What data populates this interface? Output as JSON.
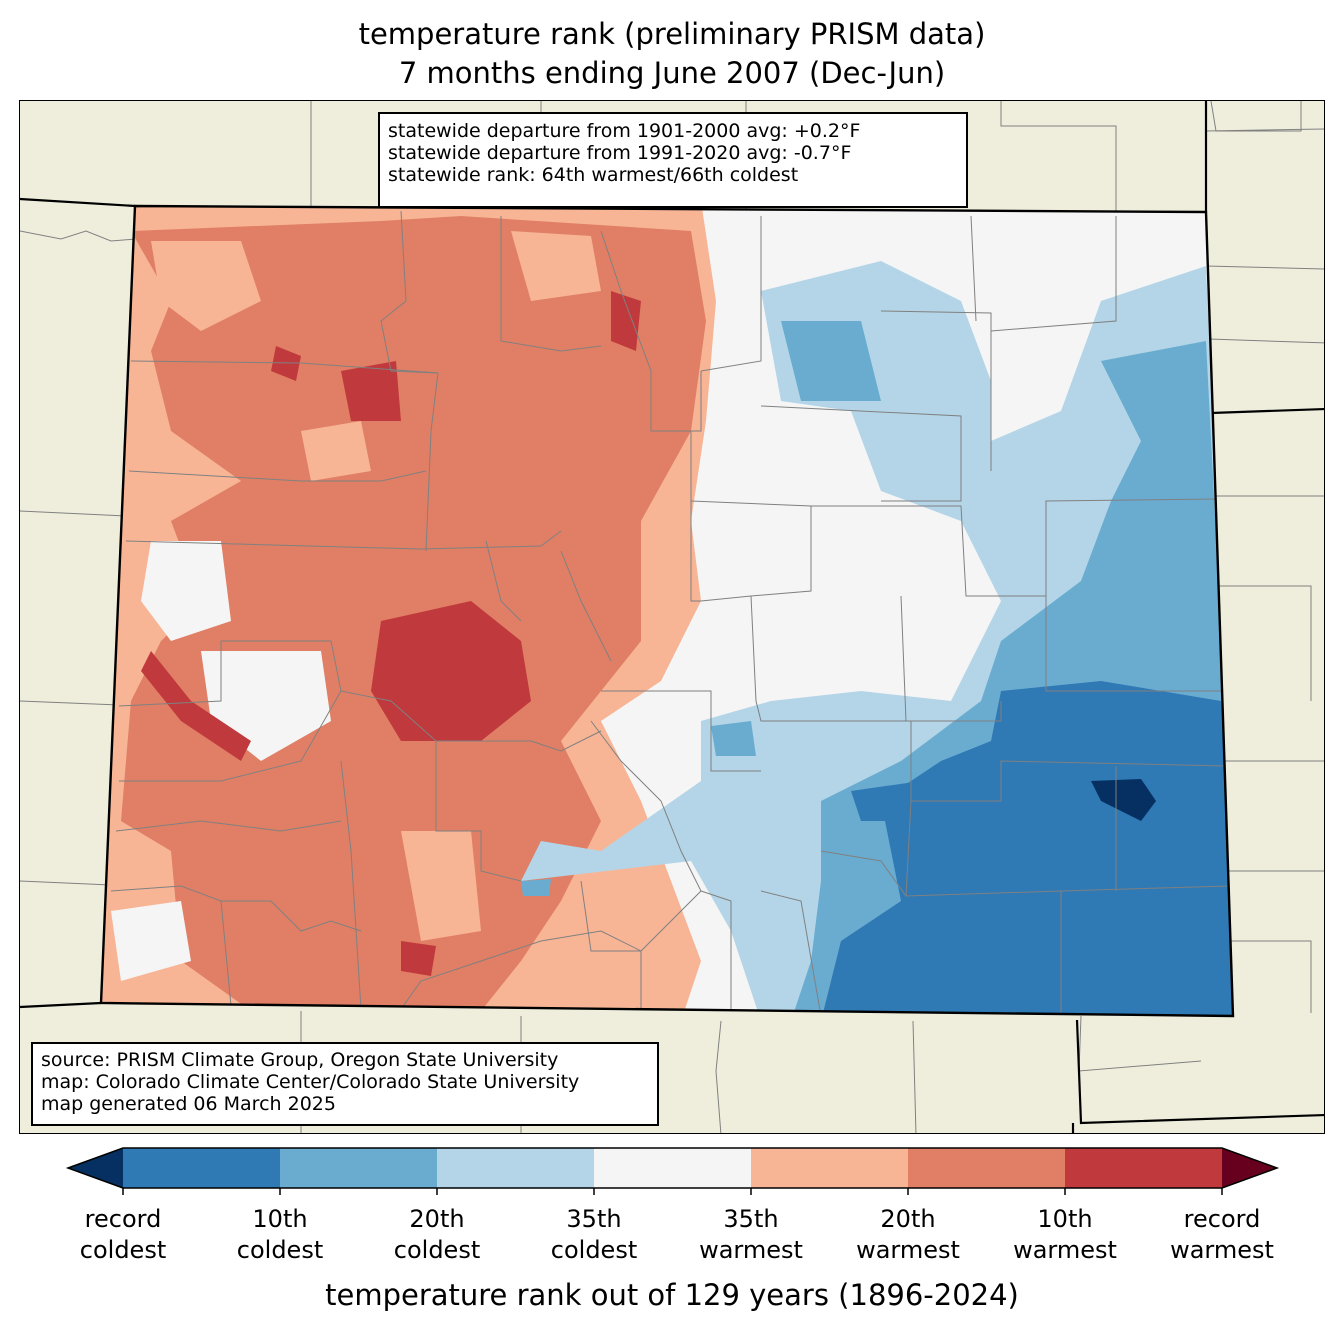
{
  "title": {
    "line1": "temperature rank (preliminary PRISM data)",
    "line2": "7 months ending June 2007 (Dec-Jun)"
  },
  "stats_box": {
    "line1": "statewide departure from 1901-2000 avg: +0.2°F",
    "line2": "statewide departure from 1991-2020 avg: -0.7°F",
    "line3": "statewide rank: 64th warmest/66th coldest"
  },
  "source_box": {
    "line1": "source: PRISM Climate Group, Oregon State University",
    "line2": "map: Colorado Climate Center/Colorado State University",
    "line3": "map generated 06 March 2025"
  },
  "colorbar": {
    "label": "temperature rank out of 129 years (1896-2024)",
    "colors": [
      "#053061",
      "#2f79b5",
      "#6aacd0",
      "#b3d5e7",
      "#f5f5f5",
      "#f7b596",
      "#e07f65",
      "#c0393d",
      "#67001f"
    ],
    "ticks": [
      {
        "line1": "record",
        "line2": "coldest"
      },
      {
        "line1": "10th",
        "line2": "coldest"
      },
      {
        "line1": "20th",
        "line2": "coldest"
      },
      {
        "line1": "35th",
        "line2": "coldest"
      },
      {
        "line1": "35th",
        "line2": "warmest"
      },
      {
        "line1": "20th",
        "line2": "warmest"
      },
      {
        "line1": "10th",
        "line2": "warmest"
      },
      {
        "line1": "record",
        "line2": "warmest"
      }
    ]
  },
  "map_colors": {
    "land": "#efeedd",
    "county_lines": "#808080",
    "state_lines": "#000000"
  }
}
